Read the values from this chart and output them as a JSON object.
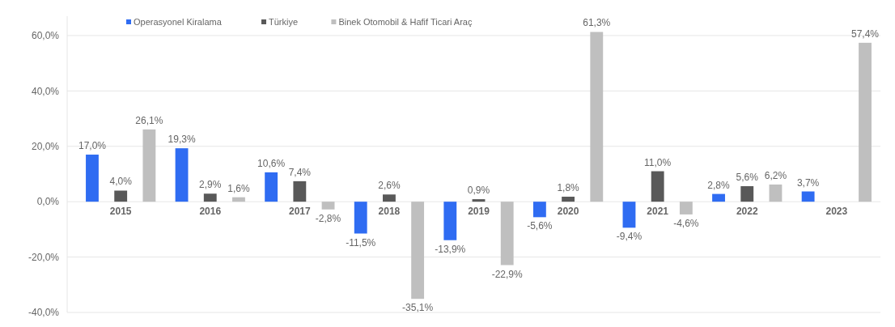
{
  "chart_data": {
    "type": "bar",
    "categories": [
      "2015",
      "2016",
      "2017",
      "2018",
      "2019",
      "2020",
      "2021",
      "2022",
      "2023"
    ],
    "series": [
      {
        "name": "Operasyonel Kiralama",
        "color": "#2f6cf2",
        "values": [
          17.0,
          19.3,
          10.6,
          -11.5,
          -13.9,
          -5.6,
          -9.4,
          2.8,
          3.7
        ],
        "value_labels": [
          "17,0%",
          "19,3%",
          "10,6%",
          "-11,5%",
          "-13,9%",
          "-5,6%",
          "-9,4%",
          "2,8%",
          "3,7%"
        ]
      },
      {
        "name": "Türkiye",
        "color": "#595959",
        "values": [
          4.0,
          2.9,
          7.4,
          2.6,
          0.9,
          1.8,
          11.0,
          5.6,
          null
        ],
        "value_labels": [
          "4,0%",
          "2,9%",
          "7,4%",
          "2,6%",
          "0,9%",
          "1,8%",
          "11,0%",
          "5,6%",
          null
        ]
      },
      {
        "name": "Binek Otomobil & Hafif Ticari Araç",
        "color": "#bfbfbf",
        "values": [
          26.1,
          1.6,
          -2.8,
          -35.1,
          -22.9,
          61.3,
          -4.6,
          6.2,
          57.4
        ],
        "value_labels": [
          "26,1%",
          "1,6%",
          "-2,8%",
          "-35,1%",
          "-22,9%",
          "61,3%",
          "-4,6%",
          "6,2%",
          "57,4%"
        ]
      }
    ],
    "ylim": [
      -40,
      67
    ],
    "yticks": [
      {
        "value": -40,
        "label": "-40,0%"
      },
      {
        "value": -20,
        "label": "-20,0%"
      },
      {
        "value": 0,
        "label": "0,0%"
      },
      {
        "value": 20,
        "label": "20,0%"
      },
      {
        "value": 40,
        "label": "40,0%"
      },
      {
        "value": 60,
        "label": "60,0%"
      }
    ],
    "grid": "y",
    "legend": "top"
  }
}
